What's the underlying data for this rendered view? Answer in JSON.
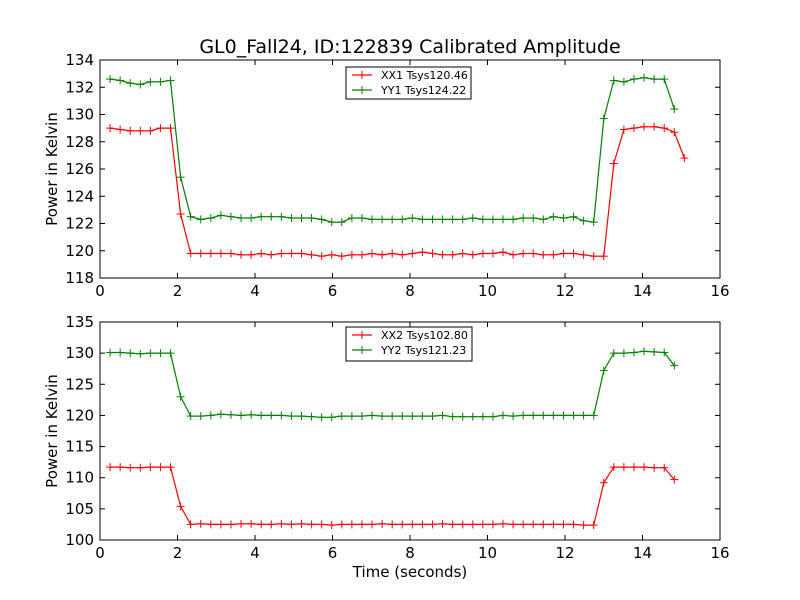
{
  "figure": {
    "title": "GL0_Fall24, ID:122839 Calibrated Amplitude"
  },
  "chart_data": [
    {
      "type": "line",
      "title": "GL0_Fall24, ID:122839 Calibrated Amplitude",
      "xlabel": "",
      "ylabel": "Power in Kelvin",
      "xlim": [
        0,
        16
      ],
      "ylim": [
        118,
        134
      ],
      "xticks": [
        0,
        2,
        4,
        6,
        8,
        10,
        12,
        14,
        16
      ],
      "yticks": [
        118,
        120,
        122,
        124,
        126,
        128,
        130,
        132,
        134
      ],
      "grid": false,
      "legend_position": "top-center",
      "x": [
        0.26,
        0.52,
        0.78,
        1.04,
        1.3,
        1.56,
        1.82,
        2.08,
        2.34,
        2.6,
        2.86,
        3.12,
        3.38,
        3.64,
        3.9,
        4.16,
        4.42,
        4.68,
        4.94,
        5.2,
        5.46,
        5.72,
        5.98,
        6.24,
        6.5,
        6.76,
        7.02,
        7.28,
        7.54,
        7.8,
        8.06,
        8.32,
        8.58,
        8.84,
        9.1,
        9.36,
        9.62,
        9.88,
        10.14,
        10.4,
        10.66,
        10.92,
        11.18,
        11.44,
        11.7,
        11.96,
        12.22,
        12.48,
        12.74,
        13.0,
        13.26,
        13.52,
        13.78,
        14.04,
        14.3,
        14.56,
        14.82,
        15.08,
        15.34
      ],
      "series": [
        {
          "name": "XX1 Tsys120.46",
          "color": "#ff0000",
          "values": [
            129.0,
            128.9,
            128.8,
            128.8,
            128.8,
            129.0,
            129.0,
            122.7,
            119.8,
            119.8,
            119.8,
            119.8,
            119.8,
            119.7,
            119.7,
            119.8,
            119.7,
            119.8,
            119.8,
            119.8,
            119.7,
            119.6,
            119.7,
            119.6,
            119.7,
            119.7,
            119.8,
            119.7,
            119.8,
            119.7,
            119.8,
            119.9,
            119.8,
            119.7,
            119.7,
            119.8,
            119.7,
            119.8,
            119.8,
            119.9,
            119.7,
            119.8,
            119.8,
            119.7,
            119.7,
            119.8,
            119.8,
            119.7,
            119.6,
            119.6,
            126.4,
            128.9,
            129.0,
            129.1,
            129.1,
            129.0,
            128.7,
            126.8,
            null
          ]
        },
        {
          "name": "YY1 Tsys124.22",
          "color": "#008000",
          "values": [
            132.6,
            132.5,
            132.3,
            132.2,
            132.4,
            132.4,
            132.5,
            125.4,
            122.5,
            122.3,
            122.4,
            122.6,
            122.5,
            122.4,
            122.4,
            122.5,
            122.5,
            122.5,
            122.4,
            122.4,
            122.4,
            122.3,
            122.1,
            122.1,
            122.4,
            122.4,
            122.3,
            122.3,
            122.3,
            122.3,
            122.4,
            122.3,
            122.3,
            122.3,
            122.3,
            122.3,
            122.4,
            122.3,
            122.3,
            122.3,
            122.3,
            122.4,
            122.4,
            122.3,
            122.5,
            122.4,
            122.5,
            122.2,
            122.1,
            129.7,
            132.5,
            132.4,
            132.6,
            132.7,
            132.6,
            132.6,
            130.4,
            null,
            null
          ]
        }
      ]
    },
    {
      "type": "line",
      "title": "",
      "xlabel": "Time (seconds)",
      "ylabel": "Power in Kelvin",
      "xlim": [
        0,
        16
      ],
      "ylim": [
        100,
        135
      ],
      "xticks": [
        0,
        2,
        4,
        6,
        8,
        10,
        12,
        14,
        16
      ],
      "yticks": [
        100,
        105,
        110,
        115,
        120,
        125,
        130,
        135
      ],
      "grid": false,
      "legend_position": "top-center",
      "x": [
        0.26,
        0.52,
        0.78,
        1.04,
        1.3,
        1.56,
        1.82,
        2.08,
        2.34,
        2.6,
        2.86,
        3.12,
        3.38,
        3.64,
        3.9,
        4.16,
        4.42,
        4.68,
        4.94,
        5.2,
        5.46,
        5.72,
        5.98,
        6.24,
        6.5,
        6.76,
        7.02,
        7.28,
        7.54,
        7.8,
        8.06,
        8.32,
        8.58,
        8.84,
        9.1,
        9.36,
        9.62,
        9.88,
        10.14,
        10.4,
        10.66,
        10.92,
        11.18,
        11.44,
        11.7,
        11.96,
        12.22,
        12.48,
        12.74,
        13.0,
        13.26,
        13.52,
        13.78,
        14.04,
        14.3,
        14.56,
        14.82,
        15.08,
        15.34
      ],
      "series": [
        {
          "name": "XX2 Tsys102.80",
          "color": "#ff0000",
          "values": [
            111.7,
            111.7,
            111.6,
            111.6,
            111.7,
            111.7,
            111.7,
            105.4,
            102.5,
            102.6,
            102.5,
            102.5,
            102.5,
            102.6,
            102.6,
            102.5,
            102.5,
            102.6,
            102.5,
            102.6,
            102.5,
            102.5,
            102.4,
            102.5,
            102.5,
            102.5,
            102.5,
            102.6,
            102.5,
            102.5,
            102.5,
            102.5,
            102.5,
            102.6,
            102.5,
            102.5,
            102.5,
            102.5,
            102.5,
            102.6,
            102.5,
            102.5,
            102.5,
            102.5,
            102.5,
            102.5,
            102.5,
            102.4,
            102.4,
            109.2,
            111.7,
            111.7,
            111.7,
            111.7,
            111.6,
            111.6,
            109.7,
            null,
            null
          ]
        },
        {
          "name": "YY2 Tsys121.23",
          "color": "#008000",
          "values": [
            130.1,
            130.1,
            130.0,
            129.9,
            130.0,
            130.0,
            130.0,
            123.0,
            119.9,
            119.9,
            120.0,
            120.2,
            120.1,
            120.0,
            120.1,
            120.0,
            120.0,
            120.0,
            119.9,
            119.9,
            119.8,
            119.7,
            119.7,
            119.9,
            119.9,
            119.9,
            120.0,
            119.9,
            119.9,
            119.9,
            119.9,
            119.9,
            119.9,
            120.0,
            119.8,
            119.8,
            119.8,
            119.8,
            119.8,
            120.0,
            119.9,
            120.0,
            120.0,
            120.0,
            120.0,
            120.0,
            120.0,
            120.0,
            120.0,
            127.2,
            130.0,
            130.0,
            130.1,
            130.3,
            130.2,
            130.1,
            128.0,
            null,
            null
          ]
        }
      ]
    }
  ]
}
